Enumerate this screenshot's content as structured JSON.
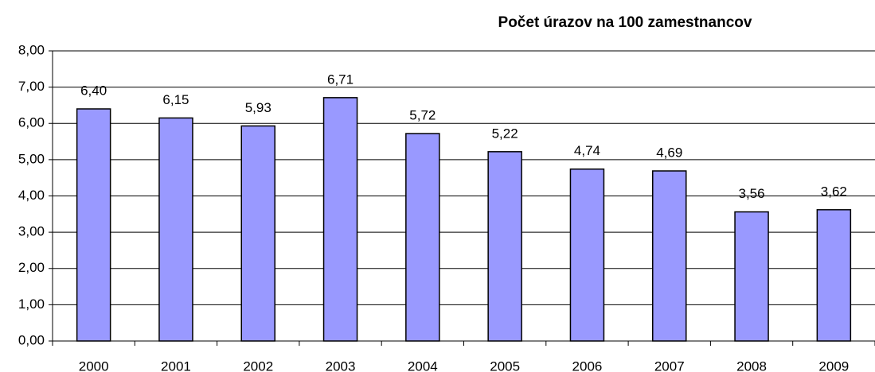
{
  "chart_data": {
    "type": "bar",
    "title": "Počet úrazov na 100 zamestnancov",
    "categories": [
      "2000",
      "2001",
      "2002",
      "2003",
      "2004",
      "2005",
      "2006",
      "2007",
      "2008",
      "2009"
    ],
    "values": [
      6.4,
      6.15,
      5.93,
      6.71,
      5.72,
      5.22,
      4.74,
      4.69,
      3.56,
      3.62
    ],
    "value_labels": [
      "6,40",
      "6,15",
      "5,93",
      "6,71",
      "5,72",
      "5,22",
      "4,74",
      "4,69",
      "3,56",
      "3,62"
    ],
    "color": "#9999ff",
    "ylim": [
      0,
      8
    ],
    "yticks": [
      {
        "value": 0,
        "label": "0,00"
      },
      {
        "value": 1,
        "label": "1,00"
      },
      {
        "value": 2,
        "label": "2,00"
      },
      {
        "value": 3,
        "label": "3,00"
      },
      {
        "value": 4,
        "label": "4,00"
      },
      {
        "value": 5,
        "label": "5,00"
      },
      {
        "value": 6,
        "label": "6,00"
      },
      {
        "value": 7,
        "label": "7,00"
      },
      {
        "value": 8,
        "label": "8,00"
      }
    ],
    "grid": true
  }
}
